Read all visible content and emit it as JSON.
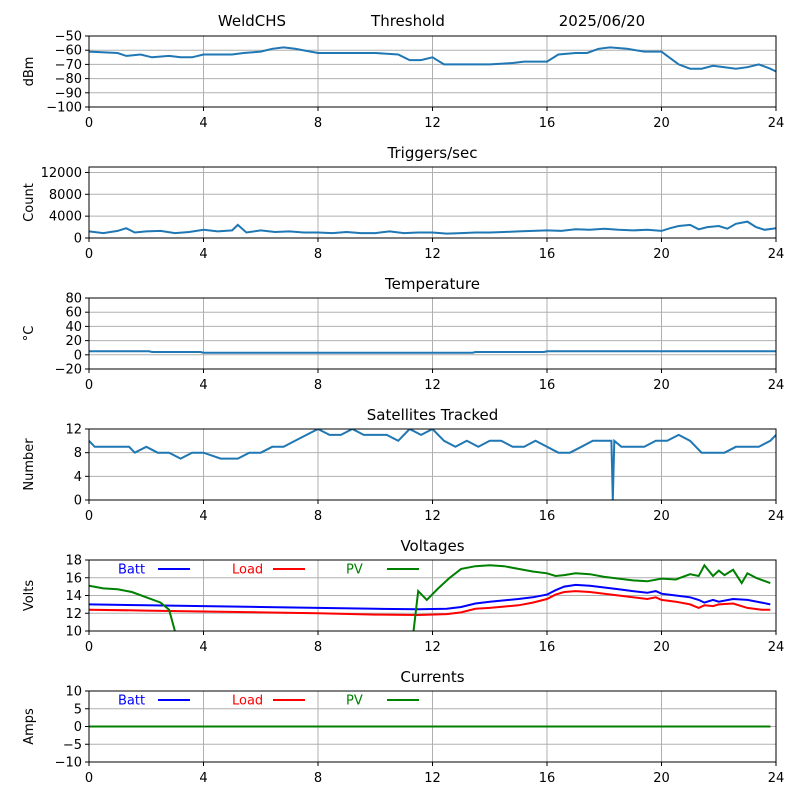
{
  "header": {
    "station": "WeldCHS",
    "mode": "Threshold",
    "date": "2025/06/20"
  },
  "chart_data": [
    {
      "type": "line",
      "title": "",
      "ylabel": "dBm",
      "xlim": [
        0,
        24
      ],
      "ylim": [
        -100,
        -50
      ],
      "xticks": [
        0,
        4,
        8,
        12,
        16,
        20,
        24
      ],
      "yticks": [
        -100,
        -90,
        -80,
        -70,
        -60,
        -50
      ],
      "grid": true,
      "series": [
        {
          "color": "#1f77b4",
          "x": [
            0,
            1,
            1.3,
            1.8,
            2.2,
            2.8,
            3.2,
            3.6,
            4,
            5,
            5.4,
            6,
            6.4,
            6.8,
            7.2,
            8,
            9,
            10,
            10.8,
            11.2,
            11.6,
            12,
            12.4,
            13,
            14,
            14.8,
            15.2,
            16,
            16.4,
            17,
            17.4,
            17.8,
            18.2,
            18.8,
            19.4,
            20,
            20.2,
            20.6,
            21,
            21.4,
            21.8,
            22.2,
            22.6,
            23,
            23.4,
            23.8,
            24
          ],
          "y": [
            -61,
            -62,
            -64,
            -63,
            -65,
            -64,
            -65,
            -65,
            -63,
            -63,
            -62,
            -61,
            -59,
            -58,
            -59,
            -62,
            -62,
            -62,
            -63,
            -67,
            -67,
            -65,
            -70,
            -70,
            -70,
            -69,
            -68,
            -68,
            -63,
            -62,
            -62,
            -59,
            -58,
            -59,
            -61,
            -61,
            -64,
            -70,
            -73,
            -73,
            -71,
            -72,
            -73,
            -72,
            -70,
            -73,
            -75
          ]
        }
      ]
    },
    {
      "type": "line",
      "title": "Triggers/sec",
      "ylabel": "Count",
      "xlim": [
        0,
        24
      ],
      "ylim": [
        0,
        13000
      ],
      "xticks": [
        0,
        4,
        8,
        12,
        16,
        20,
        24
      ],
      "yticks": [
        0,
        4000,
        8000,
        12000
      ],
      "grid": true,
      "series": [
        {
          "color": "#1f77b4",
          "x": [
            0,
            0.5,
            1,
            1.3,
            1.6,
            2,
            2.5,
            3,
            3.5,
            4,
            4.5,
            5,
            5.2,
            5.5,
            6,
            6.5,
            7,
            7.5,
            8,
            8.5,
            9,
            9.5,
            10,
            10.5,
            11,
            11.5,
            12,
            12.5,
            13,
            13.5,
            14,
            14.5,
            15,
            15.5,
            16,
            16.5,
            17,
            17.5,
            18,
            18.5,
            19,
            19.5,
            20,
            20.3,
            20.6,
            21,
            21.3,
            21.6,
            22,
            22.3,
            22.6,
            23,
            23.3,
            23.6,
            24
          ],
          "y": [
            1200,
            900,
            1300,
            1800,
            1000,
            1200,
            1300,
            900,
            1100,
            1500,
            1200,
            1400,
            2400,
            1000,
            1400,
            1100,
            1200,
            1000,
            1000,
            900,
            1100,
            900,
            900,
            1200,
            900,
            1000,
            1000,
            800,
            900,
            1000,
            1000,
            1100,
            1200,
            1300,
            1400,
            1300,
            1600,
            1500,
            1700,
            1500,
            1400,
            1500,
            1300,
            1800,
            2200,
            2400,
            1600,
            2000,
            2200,
            1700,
            2600,
            3000,
            2000,
            1500,
            1800
          ]
        }
      ]
    },
    {
      "type": "line",
      "title": "Temperature",
      "ylabel": "°C",
      "xlim": [
        0,
        24
      ],
      "ylim": [
        -20,
        80
      ],
      "xticks": [
        0,
        4,
        8,
        12,
        16,
        20,
        24
      ],
      "yticks": [
        -20,
        0,
        20,
        40,
        60,
        80
      ],
      "grid": true,
      "series": [
        {
          "color": "#1f77b4",
          "x": [
            0,
            2.1,
            2.2,
            3.9,
            4,
            13.4,
            13.5,
            15.9,
            16,
            24
          ],
          "y": [
            5,
            5,
            4,
            4,
            3,
            3,
            4,
            4,
            5,
            5
          ]
        }
      ]
    },
    {
      "type": "line",
      "title": "Satellites Tracked",
      "ylabel": "Number",
      "xlim": [
        0,
        24
      ],
      "ylim": [
        0,
        12
      ],
      "xticks": [
        0,
        4,
        8,
        12,
        16,
        20,
        24
      ],
      "yticks": [
        0,
        4,
        8,
        12
      ],
      "grid": true,
      "series": [
        {
          "color": "#1f77b4",
          "x": [
            0,
            0.2,
            0.6,
            1.4,
            1.6,
            2,
            2.4,
            2.8,
            3.2,
            3.6,
            4,
            4.6,
            5.2,
            5.6,
            6,
            6.4,
            6.8,
            7.2,
            7.6,
            8,
            8.4,
            8.8,
            9.2,
            9.6,
            10,
            10.4,
            10.8,
            11.2,
            11.6,
            12,
            12.4,
            12.8,
            13.2,
            13.6,
            14,
            14.4,
            14.8,
            15.2,
            15.6,
            16,
            16.4,
            16.8,
            17.2,
            17.6,
            18,
            18.25,
            18.3,
            18.35,
            18.6,
            19,
            19.4,
            19.8,
            20.2,
            20.6,
            21,
            21.4,
            21.8,
            22.2,
            22.6,
            23,
            23.4,
            23.8,
            24
          ],
          "y": [
            10,
            9,
            9,
            9,
            8,
            9,
            8,
            8,
            7,
            8,
            8,
            7,
            7,
            8,
            8,
            9,
            9,
            10,
            11,
            12,
            11,
            11,
            12,
            11,
            11,
            11,
            10,
            12,
            11,
            12,
            10,
            9,
            10,
            9,
            10,
            10,
            9,
            9,
            10,
            9,
            8,
            8,
            9,
            10,
            10,
            10,
            0,
            10,
            9,
            9,
            9,
            10,
            10,
            11,
            10,
            8,
            8,
            8,
            9,
            9,
            9,
            10,
            11
          ]
        }
      ]
    },
    {
      "type": "line",
      "title": "Voltages",
      "ylabel": "Volts",
      "xlim": [
        0,
        24
      ],
      "ylim": [
        10,
        18
      ],
      "xticks": [
        0,
        4,
        8,
        12,
        16,
        20,
        24
      ],
      "yticks": [
        10,
        12,
        14,
        16,
        18
      ],
      "grid": true,
      "legend": "upper-left",
      "series": [
        {
          "name": "Batt",
          "color": "#0000ff",
          "x": [
            0,
            2,
            4,
            6,
            8,
            10,
            11.5,
            12.5,
            13,
            13.5,
            14,
            15,
            15.5,
            16,
            16.3,
            16.6,
            17,
            17.5,
            18,
            18.5,
            19,
            19.5,
            19.8,
            20,
            20.5,
            21,
            21.3,
            21.5,
            21.8,
            22,
            22.5,
            23,
            23.5,
            23.8
          ],
          "y": [
            13.0,
            12.9,
            12.8,
            12.7,
            12.6,
            12.5,
            12.45,
            12.5,
            12.7,
            13.1,
            13.3,
            13.6,
            13.8,
            14.1,
            14.6,
            15.0,
            15.2,
            15.1,
            14.9,
            14.7,
            14.5,
            14.3,
            14.5,
            14.2,
            14.0,
            13.8,
            13.5,
            13.2,
            13.5,
            13.3,
            13.6,
            13.5,
            13.2,
            13.0
          ]
        },
        {
          "name": "Load",
          "color": "#ff0000",
          "x": [
            0,
            2,
            4,
            6,
            8,
            10,
            11.5,
            12.5,
            13,
            13.5,
            14,
            15,
            15.5,
            16,
            16.3,
            16.6,
            17,
            17.5,
            18,
            18.5,
            19,
            19.5,
            19.8,
            20,
            20.5,
            21,
            21.3,
            21.5,
            21.8,
            22,
            22.5,
            23,
            23.5,
            23.8
          ],
          "y": [
            12.4,
            12.3,
            12.2,
            12.1,
            12.0,
            11.85,
            11.8,
            11.9,
            12.1,
            12.5,
            12.6,
            12.9,
            13.2,
            13.6,
            14.1,
            14.4,
            14.5,
            14.4,
            14.2,
            14.0,
            13.8,
            13.6,
            13.8,
            13.5,
            13.3,
            13.0,
            12.6,
            12.9,
            12.8,
            13.0,
            13.1,
            12.6,
            12.4,
            12.4
          ]
        },
        {
          "name": "PV",
          "color": "#008000",
          "x": [
            0,
            0.5,
            1,
            1.5,
            2,
            2.5,
            2.8,
            3,
            3.1
          ],
          "y": [
            15.1,
            14.8,
            14.7,
            14.4,
            13.8,
            13.2,
            12.4,
            10.0,
            9.0
          ],
          "x2": [
            11.3,
            11.5,
            11.8,
            12.2,
            12.6,
            13,
            13.5,
            14,
            14.5,
            15,
            15.5,
            16,
            16.3,
            16.6,
            17,
            17.5,
            18,
            18.5,
            19,
            19.5,
            20,
            20.5,
            21,
            21.3,
            21.5,
            21.8,
            22,
            22.2,
            22.5,
            22.8,
            23,
            23.3,
            23.8
          ],
          "y2": [
            9.0,
            14.5,
            13.5,
            14.8,
            16.0,
            17.0,
            17.3,
            17.4,
            17.3,
            17.0,
            16.7,
            16.5,
            16.2,
            16.3,
            16.5,
            16.4,
            16.1,
            15.9,
            15.7,
            15.6,
            15.9,
            15.8,
            16.4,
            16.2,
            17.4,
            16.2,
            16.8,
            16.3,
            16.9,
            15.4,
            16.5,
            16.0,
            15.4
          ]
        }
      ]
    },
    {
      "type": "line",
      "title": "Currents",
      "ylabel": "Amps",
      "xlim": [
        0,
        24
      ],
      "ylim": [
        -10,
        10
      ],
      "xticks": [
        0,
        4,
        8,
        12,
        16,
        20,
        24
      ],
      "yticks": [
        -10,
        -5,
        0,
        5,
        10
      ],
      "grid": true,
      "legend": "upper-left",
      "series": [
        {
          "name": "Batt",
          "color": "#0000ff",
          "x": [
            0,
            23.8
          ],
          "y": [
            0,
            0
          ]
        },
        {
          "name": "Load",
          "color": "#ff0000",
          "x": [
            0,
            23.8
          ],
          "y": [
            0,
            0
          ]
        },
        {
          "name": "PV",
          "color": "#008000",
          "x": [
            0,
            23.8
          ],
          "y": [
            0,
            0
          ]
        }
      ]
    }
  ]
}
